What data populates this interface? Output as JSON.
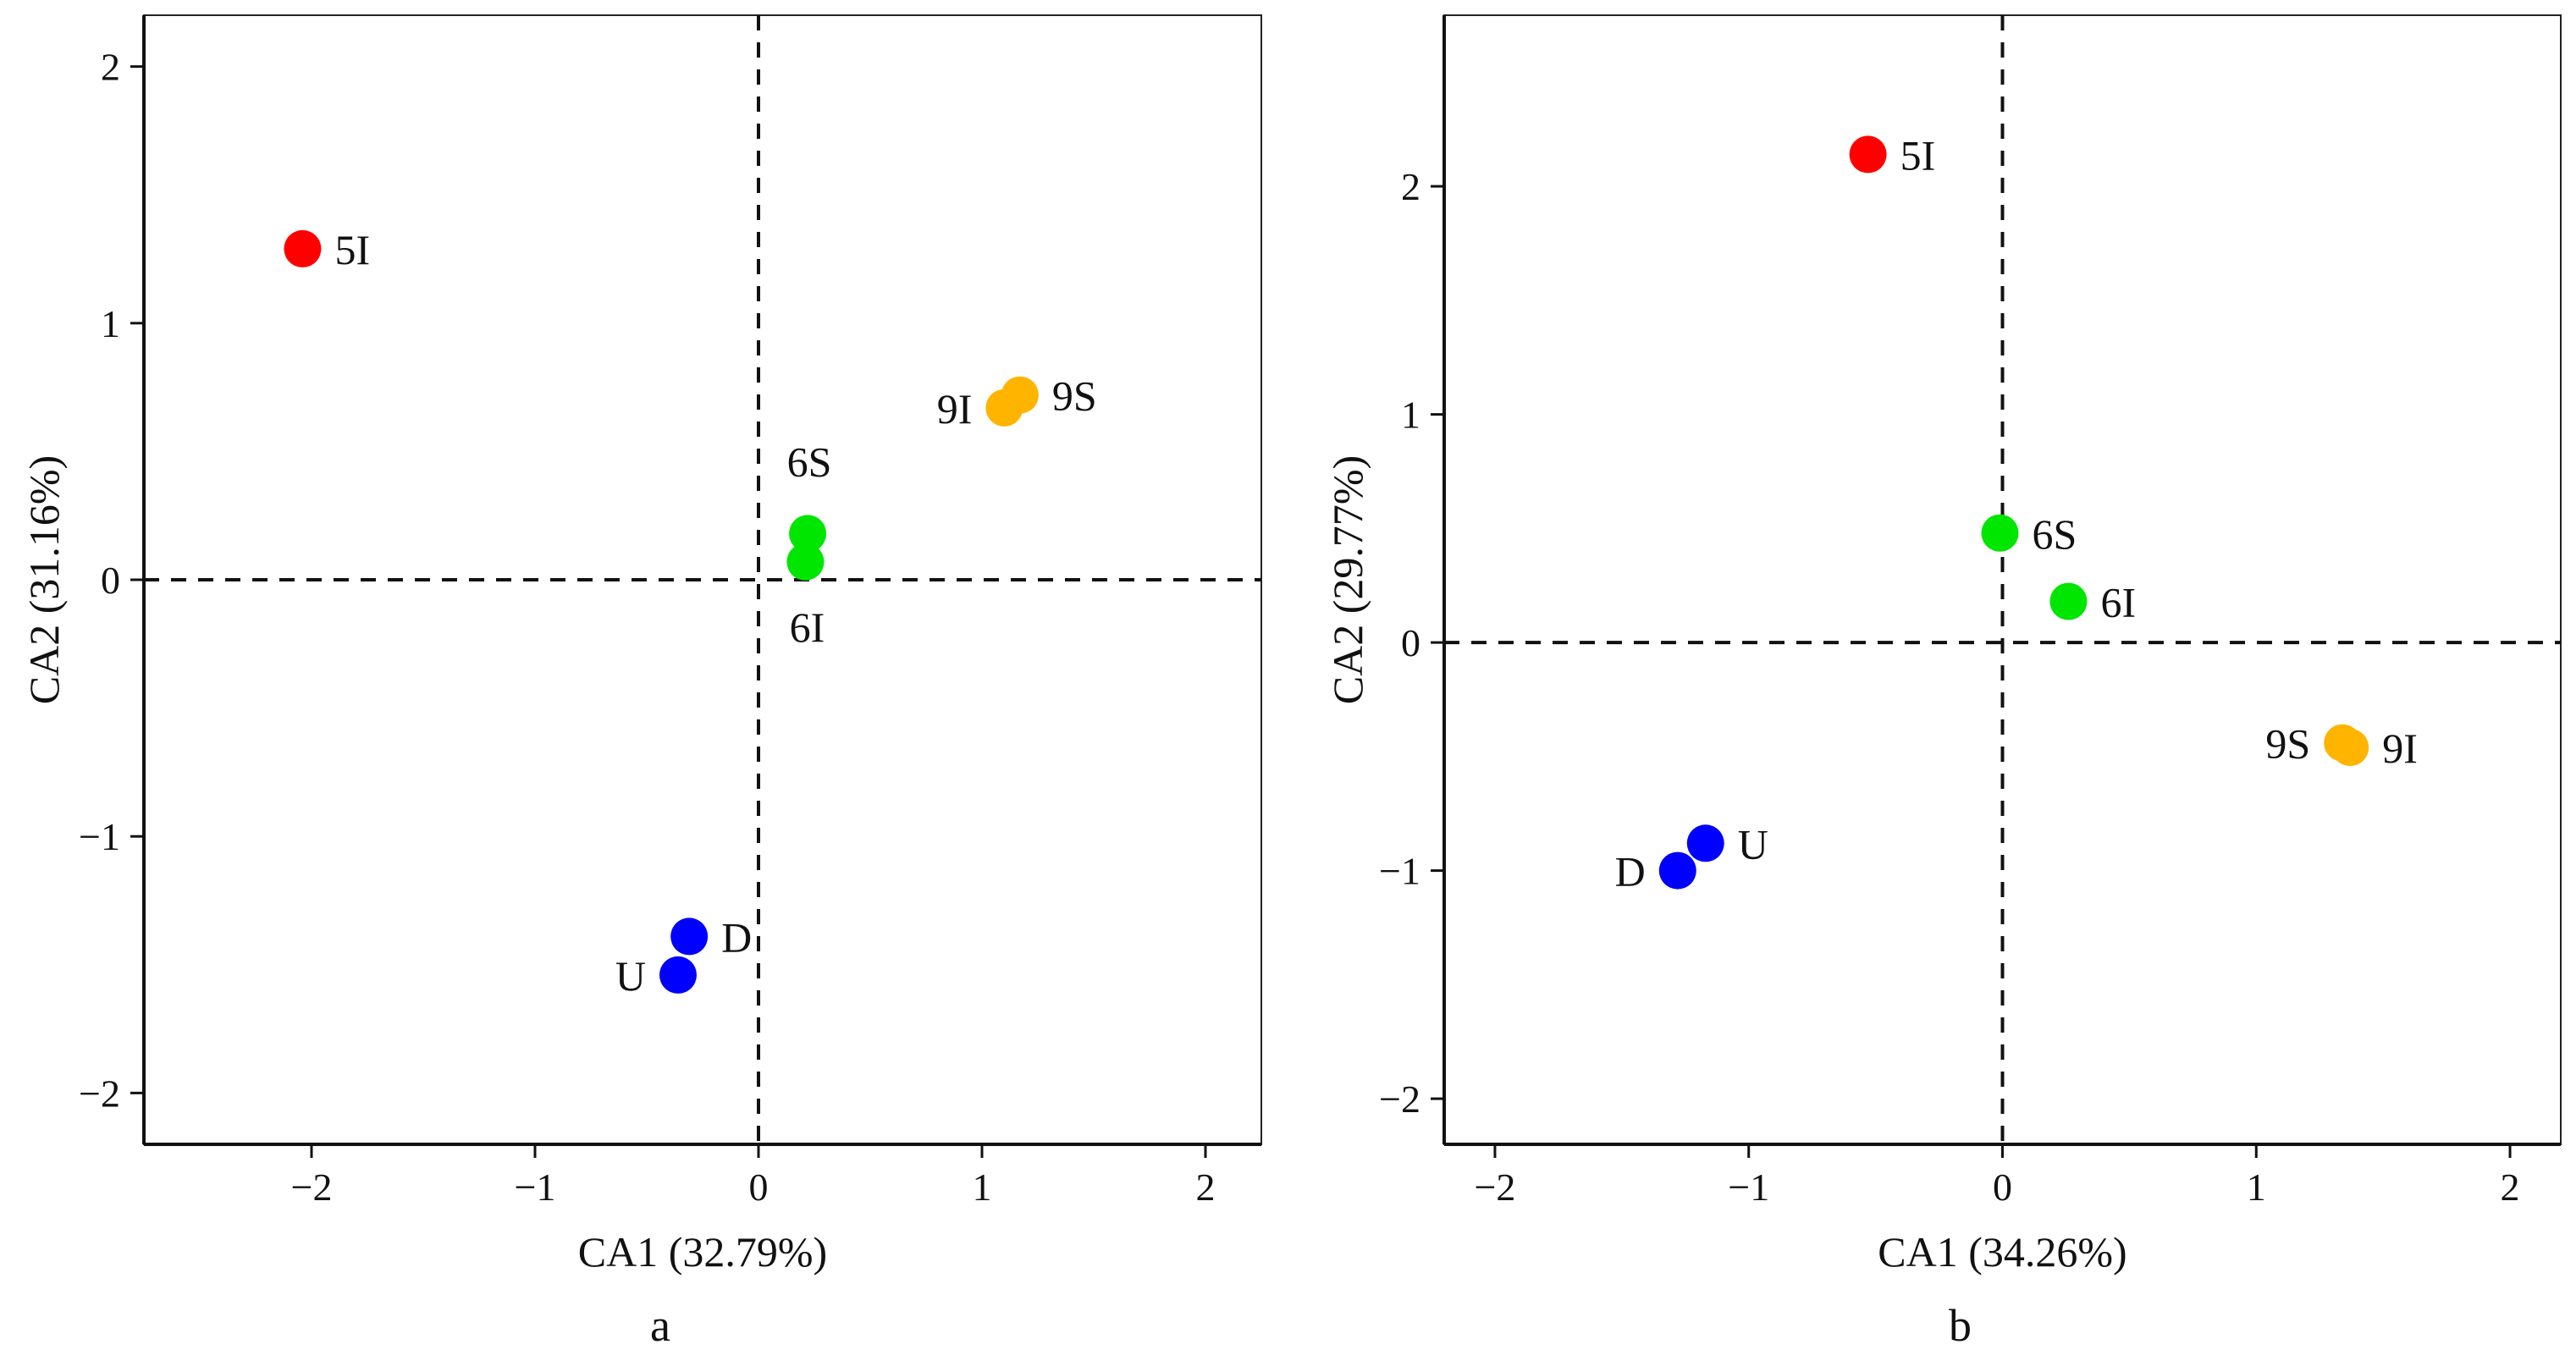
{
  "chart_data": [
    {
      "type": "scatter",
      "panel_label": "a",
      "xlabel": "CA1 (32.79%)",
      "ylabel": "CA2 (31.16%)",
      "xlim": [
        -2.75,
        2.25
      ],
      "ylim": [
        -2.2,
        2.2
      ],
      "xticks": [
        -2,
        -1,
        0,
        1,
        2
      ],
      "yticks": [
        -2,
        -1,
        0,
        1,
        2
      ],
      "xtick_labels": [
        "−2",
        "−1",
        "0",
        "1",
        "2"
      ],
      "ytick_labels": [
        "−2",
        "−1",
        "0",
        "1",
        "2"
      ],
      "reference_lines": {
        "x": 0,
        "y": 0,
        "style": "dashed"
      },
      "grid": false,
      "points": [
        {
          "label": "5I",
          "x": -2.04,
          "y": 1.29,
          "color": "#ff0000",
          "label_side": "right"
        },
        {
          "label": "9S",
          "x": 1.17,
          "y": 0.72,
          "color": "#ffb400",
          "label_side": "right"
        },
        {
          "label": "9I",
          "x": 1.1,
          "y": 0.67,
          "color": "#ffb400",
          "label_side": "left"
        },
        {
          "label": "6S",
          "x": 0.22,
          "y": 0.18,
          "color": "#00e600",
          "label_side": "above"
        },
        {
          "label": "6I",
          "x": 0.21,
          "y": 0.07,
          "color": "#00e600",
          "label_side": "below"
        },
        {
          "label": "D",
          "x": -0.31,
          "y": -1.39,
          "color": "#0000ff",
          "label_side": "right"
        },
        {
          "label": "U",
          "x": -0.36,
          "y": -1.54,
          "color": "#0000ff",
          "label_side": "left"
        }
      ]
    },
    {
      "type": "scatter",
      "panel_label": "b",
      "xlabel": "CA1 (34.26%)",
      "ylabel": "CA2 (29.77%)",
      "xlim": [
        -2.2,
        2.2
      ],
      "ylim": [
        -2.2,
        2.75
      ],
      "xticks": [
        -2,
        -1,
        0,
        1,
        2
      ],
      "yticks": [
        -2,
        -1,
        0,
        1,
        2
      ],
      "xtick_labels": [
        "−2",
        "−1",
        "0",
        "1",
        "2"
      ],
      "ytick_labels": [
        "−2",
        "−1",
        "0",
        "1",
        "2"
      ],
      "reference_lines": {
        "x": 0,
        "y": 0,
        "style": "dashed"
      },
      "grid": false,
      "points": [
        {
          "label": "5I",
          "x": -0.53,
          "y": 2.14,
          "color": "#ff0000",
          "label_side": "right"
        },
        {
          "label": "6S",
          "x": -0.01,
          "y": 0.48,
          "color": "#00e600",
          "label_side": "right"
        },
        {
          "label": "6I",
          "x": 0.26,
          "y": 0.18,
          "color": "#00e600",
          "label_side": "right"
        },
        {
          "label": "9S",
          "x": 1.34,
          "y": -0.44,
          "color": "#ffb400",
          "label_side": "left"
        },
        {
          "label": "9I",
          "x": 1.37,
          "y": -0.46,
          "color": "#ffb400",
          "label_side": "right"
        },
        {
          "label": "U",
          "x": -1.17,
          "y": -0.88,
          "color": "#0000ff",
          "label_side": "right"
        },
        {
          "label": "D",
          "x": -1.28,
          "y": -1.0,
          "color": "#0000ff",
          "label_side": "left"
        }
      ]
    }
  ]
}
